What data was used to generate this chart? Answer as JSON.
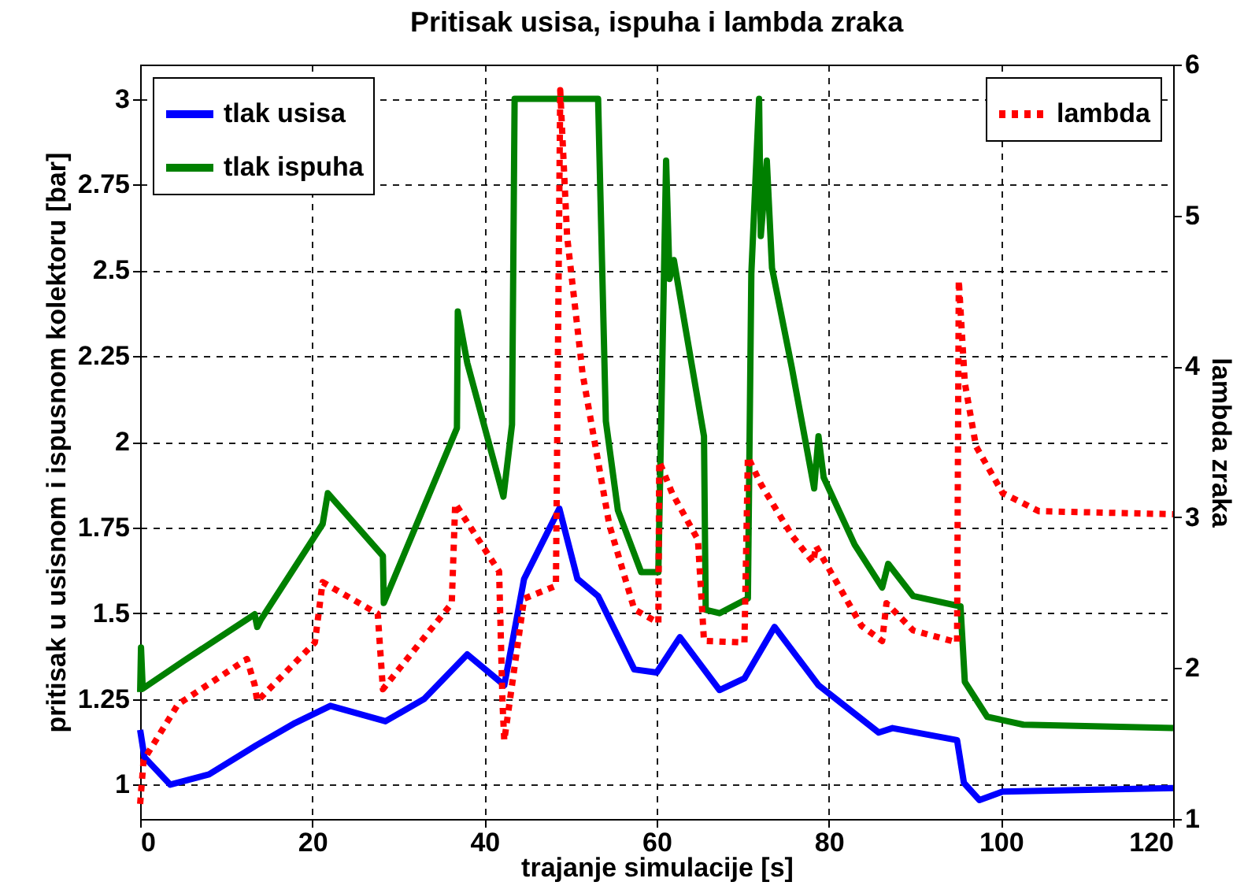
{
  "chart_data": {
    "type": "line",
    "title": "Pritisak usisa, ispuha  i lambda  zraka",
    "xlabel": "trajanje simulacije  [s]",
    "ylabel": "pritisak u usisnom i ispusnom kolektoru  [bar]",
    "y2label": "lambda  zraka",
    "xlim": [
      0,
      120
    ],
    "xticks": [
      0,
      20,
      40,
      60,
      80,
      100,
      120
    ],
    "ylim": [
      0.9,
      3.1
    ],
    "yticks": [
      1,
      1.25,
      1.5,
      1.75,
      2,
      2.25,
      2.5,
      2.75,
      3
    ],
    "y2lim": [
      1,
      6
    ],
    "y2ticks": [
      1,
      2,
      3,
      4,
      5,
      6
    ],
    "grid": true,
    "legend": "top left",
    "marker": "none",
    "series": [
      {
        "name": "tlak usisa",
        "color": "#0000ff",
        "line_style": "solid",
        "x": [
          0,
          0.5,
          3.5,
          8,
          13.5,
          18,
          22.1,
          28.5,
          33,
          38,
          42.3,
          44.6,
          48.7,
          50.8,
          53.2,
          57.4,
          60,
          62.7,
          67.3,
          70.2,
          73.7,
          78.8,
          85.8,
          87.4,
          94.9,
          95.7,
          97.5,
          100.2,
          120
        ],
        "values": [
          1.16,
          1.08,
          1.0,
          1.03,
          1.115,
          1.18,
          1.23,
          1.185,
          1.25,
          1.38,
          1.29,
          1.6,
          1.805,
          1.6,
          1.55,
          1.336,
          1.327,
          1.43,
          1.276,
          1.31,
          1.46,
          1.29,
          1.152,
          1.165,
          1.13,
          1.005,
          0.955,
          0.98,
          0.99
        ]
      },
      {
        "name": "tlak ispuha",
        "color": "#008000",
        "line_style": "solid",
        "x": [
          0,
          0.1,
          0.3,
          5,
          13.3,
          13.6,
          14,
          21.2,
          21.8,
          28.2,
          28.3,
          36.8,
          36.9,
          38,
          42.2,
          43.2,
          43.5,
          53.2,
          54.1,
          55.5,
          58.2,
          60.2,
          61.1,
          61.5,
          62,
          65.5,
          65.7,
          67.3,
          70.6,
          71,
          71.9,
          72.1,
          72.8,
          73.4,
          75.7,
          78.3,
          78.8,
          79.4,
          83,
          86.2,
          86.9,
          89.8,
          95.3,
          95.8,
          98.4,
          102.6,
          120
        ],
        "values": [
          1.27,
          1.4,
          1.28,
          1.36,
          1.497,
          1.46,
          1.48,
          1.76,
          1.85,
          1.667,
          1.53,
          2.04,
          2.38,
          2.23,
          1.84,
          2.05,
          3.0,
          3.0,
          2.06,
          1.8,
          1.62,
          1.62,
          2.82,
          2.475,
          2.53,
          2.016,
          1.51,
          1.5,
          1.543,
          2.49,
          3.0,
          2.6,
          2.82,
          2.507,
          2.217,
          1.864,
          2.016,
          1.896,
          1.7,
          1.575,
          1.644,
          1.55,
          1.52,
          1.3,
          1.198,
          1.175,
          1.165
        ]
      },
      {
        "name": "lambda",
        "color": "#ff0000",
        "line_style": "dotted",
        "axis": "y2",
        "x": [
          0,
          0.4,
          4.4,
          12.4,
          13.3,
          13.6,
          20.3,
          21.2,
          27.6,
          28.2,
          36.2,
          36.6,
          41.7,
          42.1,
          42.3,
          43.5,
          44.6,
          48.3,
          48.8,
          49.6,
          51.4,
          54.5,
          57.4,
          60.2,
          60.3,
          61.8,
          64.8,
          65.5,
          70.2,
          70.6,
          72.1,
          75.7,
          78.2,
          78.5,
          83.8,
          86.2,
          86.7,
          89.8,
          94.9,
          95.1,
          95.8,
          97.1,
          100.2,
          104.4,
          120
        ],
        "values": [
          1.1,
          1.39,
          1.76,
          2.06,
          1.89,
          1.78,
          2.17,
          2.57,
          2.36,
          1.86,
          2.43,
          3.09,
          2.64,
          1.76,
          1.52,
          2.01,
          2.46,
          2.545,
          5.83,
          4.86,
          3.95,
          2.95,
          2.39,
          2.3,
          3.37,
          3.16,
          2.85,
          2.18,
          2.17,
          3.4,
          3.22,
          2.88,
          2.7,
          2.81,
          2.28,
          2.18,
          2.43,
          2.25,
          2.17,
          4.57,
          3.89,
          3.47,
          3.16,
          3.04,
          3.02
        ]
      }
    ]
  }
}
